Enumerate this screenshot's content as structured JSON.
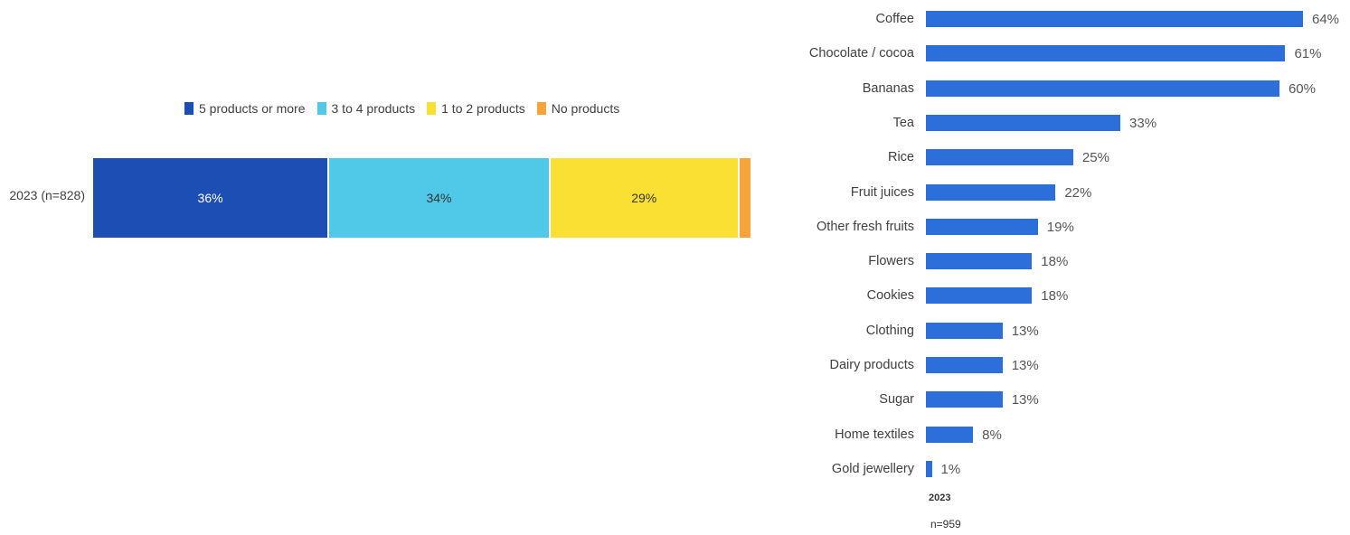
{
  "chart_data": [
    {
      "type": "bar",
      "orientation": "horizontal",
      "stacked": true,
      "categories": [
        "2023 (n=828)"
      ],
      "series": [
        {
          "name": "5 products or more",
          "values": [
            36
          ],
          "value_label": "36%",
          "color": "#1c4eb3",
          "label_color": "#ffffff"
        },
        {
          "name": "3 to 4 products",
          "values": [
            34
          ],
          "value_label": "34%",
          "color": "#4fc9e7",
          "label_color": "#333333"
        },
        {
          "name": "1 to 2 products",
          "values": [
            29
          ],
          "value_label": "29%",
          "color": "#fbe034",
          "label_color": "#333333"
        },
        {
          "name": "No products",
          "values": [
            2
          ],
          "value_label": "",
          "color": "#f5a53c",
          "label_color": "#333333"
        }
      ],
      "legend": "top"
    },
    {
      "type": "bar",
      "orientation": "horizontal",
      "color": "#2c6fdb",
      "categories": [
        "Coffee",
        "Chocolate / cocoa",
        "Bananas",
        "Tea",
        "Rice",
        "Fruit juices",
        "Other fresh fruits",
        "Flowers",
        "Cookies",
        "Clothing",
        "Dairy products",
        "Sugar",
        "Home textiles",
        "Gold jewellery"
      ],
      "values": [
        64,
        61,
        60,
        33,
        25,
        22,
        19,
        18,
        18,
        13,
        13,
        13,
        8,
        1
      ],
      "value_labels": [
        "64%",
        "61%",
        "60%",
        "33%",
        "25%",
        "22%",
        "19%",
        "18%",
        "18%",
        "13%",
        "13%",
        "13%",
        "8%",
        "1%"
      ],
      "xlim": [
        0,
        64
      ],
      "series_label": "2023",
      "note": "n=959"
    }
  ]
}
